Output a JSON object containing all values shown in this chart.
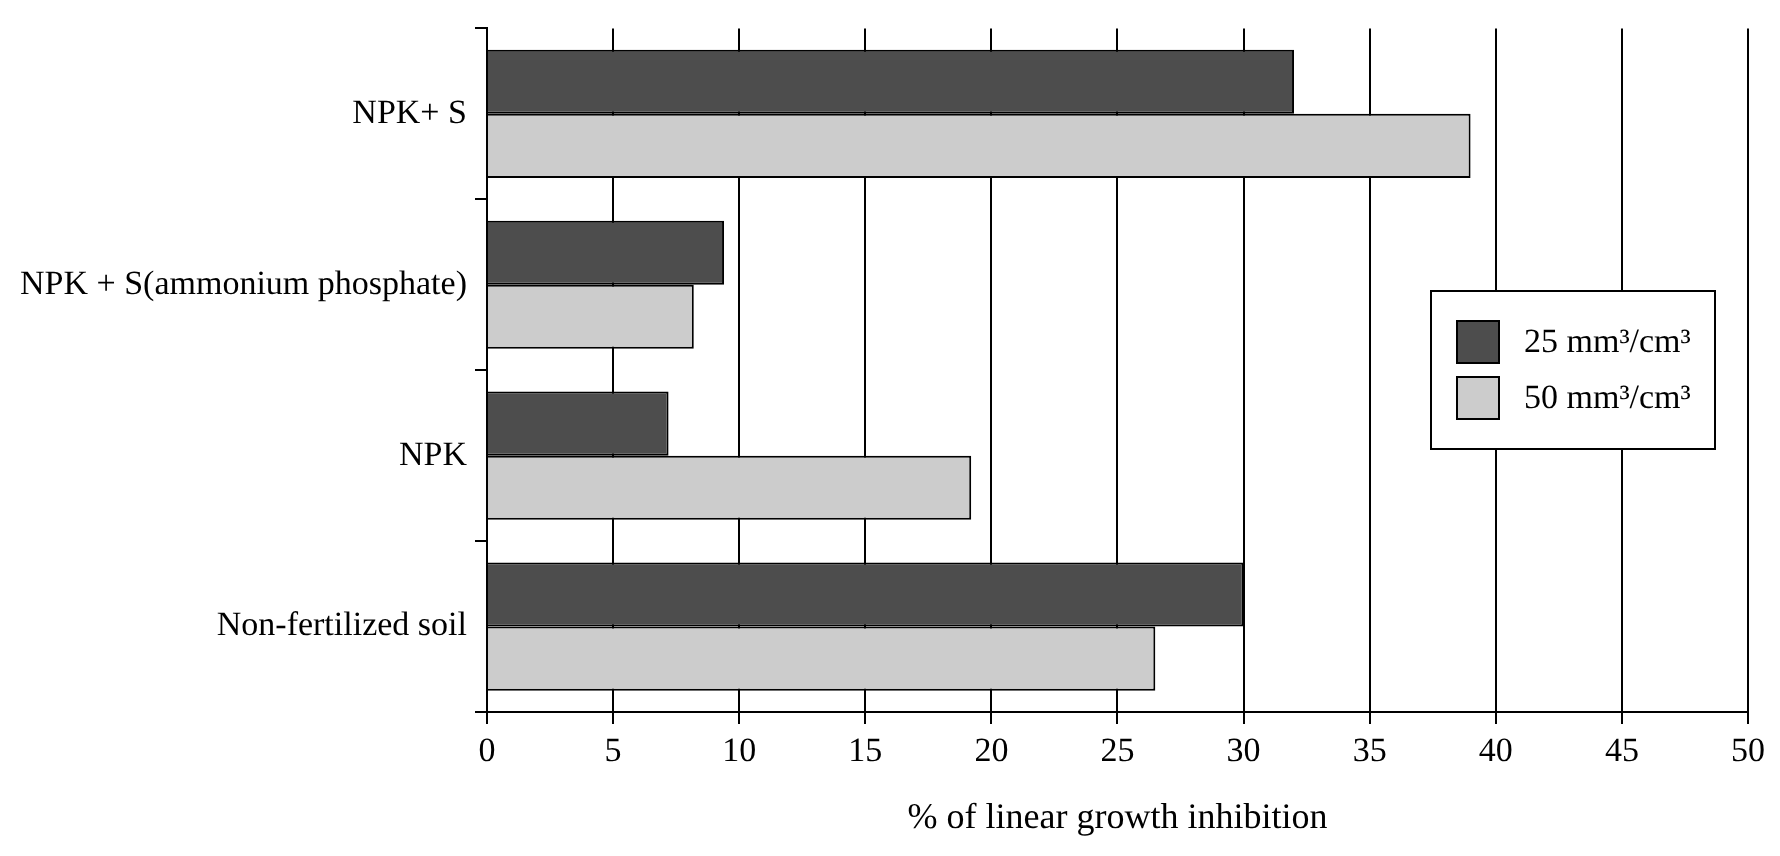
{
  "chart_data": {
    "type": "bar",
    "orientation": "horizontal",
    "categories": [
      "NPK+ S",
      "NPK + S(ammonium phosphate)",
      "NPK",
      "Non-fertilized soil"
    ],
    "series": [
      {
        "name": "25 mm³/cm³",
        "color": "#4d4d4d",
        "values": [
          32.0,
          9.4,
          7.2,
          30.0
        ]
      },
      {
        "name": "50 mm³/cm³",
        "color": "#cccccc",
        "values": [
          39.0,
          8.2,
          19.2,
          26.5
        ]
      }
    ],
    "xlabel": "% of linear growth inhibition",
    "xlim": [
      0,
      50
    ],
    "xticks": [
      0,
      5,
      10,
      15,
      20,
      25,
      30,
      35,
      40,
      45,
      50
    ],
    "grid": "x",
    "legend": "right"
  }
}
